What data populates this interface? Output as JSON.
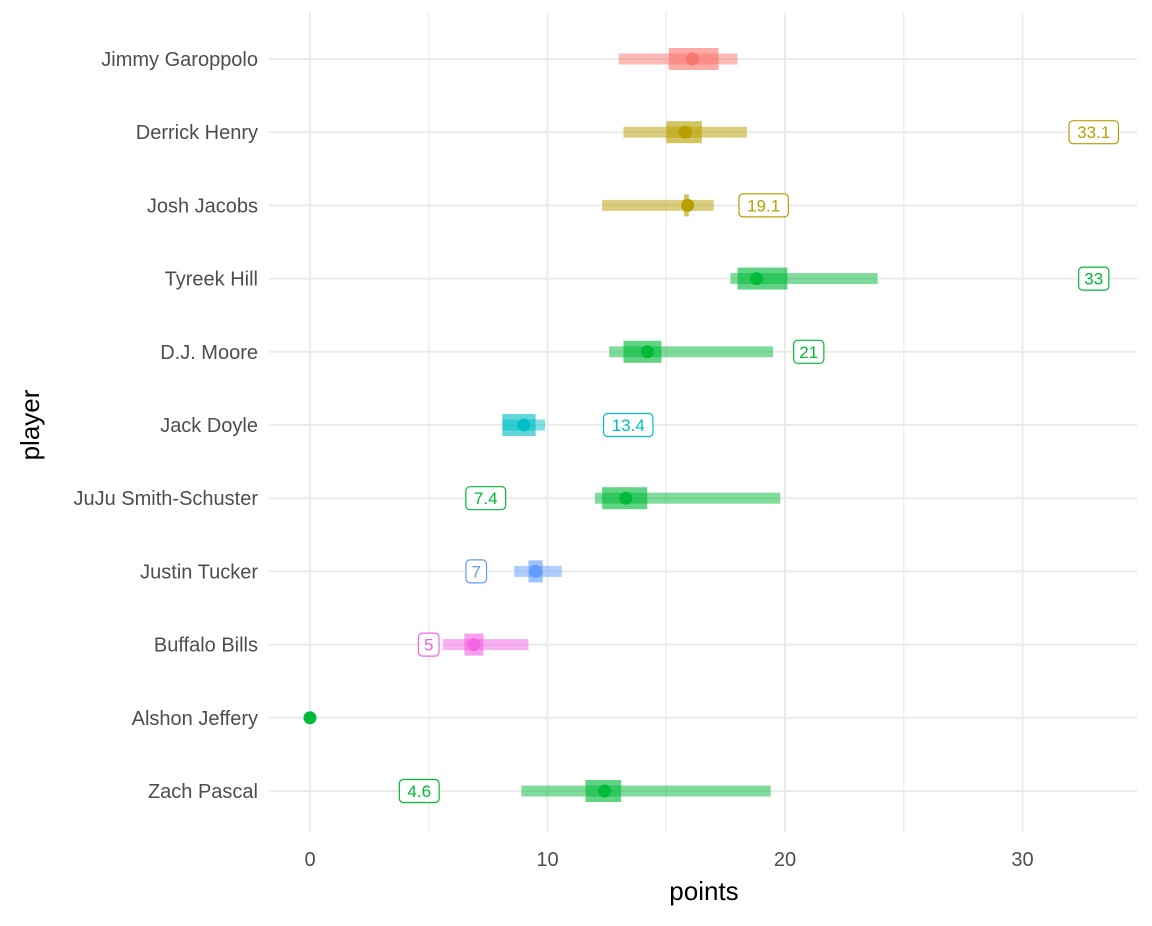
{
  "chart_data": {
    "type": "interval",
    "xlabel": "points",
    "ylabel": "player",
    "xlim": [
      -1.7,
      35
    ],
    "x_ticks": [
      0,
      10,
      20,
      30
    ],
    "x_tick_labels": [
      "0",
      "10",
      "20",
      "30"
    ],
    "grid": true,
    "legend": "none",
    "colors": {
      "QB": "#F8766D",
      "RB": "#B79F00",
      "WR": "#00BA38",
      "TE": "#00BFC4",
      "K": "#619CFF",
      "DST": "#F564E3"
    },
    "players": [
      {
        "name": "Jimmy Garoppolo",
        "group": "QB",
        "wide": [
          13.0,
          18.0
        ],
        "narrow": [
          15.1,
          17.2
        ],
        "point": 16.1,
        "annotation": null
      },
      {
        "name": "Derrick Henry",
        "group": "RB",
        "wide": [
          13.2,
          18.4
        ],
        "narrow": [
          15.0,
          16.5
        ],
        "point": 15.8,
        "annotation": "33.1",
        "annotation_x": 33.0
      },
      {
        "name": "Josh Jacobs",
        "group": "RB",
        "wide": [
          12.3,
          17.0
        ],
        "narrow": [
          15.75,
          15.95
        ],
        "point": 15.9,
        "annotation": "19.1",
        "annotation_x": 19.1
      },
      {
        "name": "Tyreek Hill",
        "group": "WR",
        "wide": [
          17.7,
          23.9
        ],
        "narrow": [
          18.0,
          20.1
        ],
        "point": 18.8,
        "annotation": "33",
        "annotation_x": 33.0
      },
      {
        "name": "D.J. Moore",
        "group": "WR",
        "wide": [
          12.6,
          19.5
        ],
        "narrow": [
          13.2,
          14.8
        ],
        "point": 14.2,
        "annotation": "21",
        "annotation_x": 21.0
      },
      {
        "name": "Jack Doyle",
        "group": "TE",
        "wide": [
          8.1,
          9.9
        ],
        "narrow": [
          8.1,
          9.5
        ],
        "point": 9.0,
        "annotation": "13.4",
        "annotation_x": 13.4
      },
      {
        "name": "JuJu Smith-Schuster",
        "group": "WR",
        "wide": [
          12.0,
          19.8
        ],
        "narrow": [
          12.3,
          14.2
        ],
        "point": 13.3,
        "annotation": "7.4",
        "annotation_x": 7.4
      },
      {
        "name": "Justin Tucker",
        "group": "K",
        "wide": [
          8.6,
          10.6
        ],
        "narrow": [
          9.2,
          9.8
        ],
        "point": 9.5,
        "annotation": "7",
        "annotation_x": 7.0
      },
      {
        "name": "Buffalo Bills",
        "group": "DST",
        "wide": [
          5.6,
          9.2
        ],
        "narrow": [
          6.5,
          7.3
        ],
        "point": 6.9,
        "annotation": "5",
        "annotation_x": 5.0
      },
      {
        "name": "Alshon Jeffery",
        "group": "WR",
        "wide": [
          0,
          0
        ],
        "narrow": [
          0,
          0
        ],
        "point": 0,
        "annotation": null
      },
      {
        "name": "Zach Pascal",
        "group": "WR",
        "wide": [
          8.9,
          19.4
        ],
        "narrow": [
          11.6,
          13.1
        ],
        "point": 12.4,
        "annotation": "4.6",
        "annotation_x": 4.6
      }
    ]
  }
}
